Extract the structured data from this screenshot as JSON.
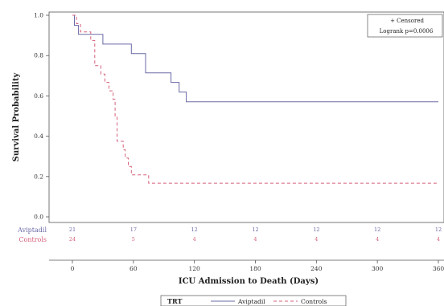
{
  "chart_data": {
    "type": "line",
    "subtype": "kaplan-meier step",
    "title": "",
    "xlabel": "ICU Admission to Death (Days)",
    "ylabel": "Survival Probability",
    "xlim": [
      0,
      360
    ],
    "ylim": [
      0,
      1.0
    ],
    "xticks": [
      0,
      60,
      120,
      180,
      240,
      300,
      360
    ],
    "yticks": [
      0.0,
      0.2,
      0.4,
      0.6,
      0.8,
      1.0
    ],
    "grid": false,
    "series": [
      {
        "name": "Aviptadil",
        "color": "#6a6aa6",
        "dash": "solid",
        "points": [
          [
            0,
            1.0
          ],
          [
            2,
            1.0
          ],
          [
            2,
            0.95
          ],
          [
            6,
            0.95
          ],
          [
            6,
            0.905
          ],
          [
            30,
            0.905
          ],
          [
            30,
            0.857
          ],
          [
            58,
            0.857
          ],
          [
            58,
            0.81
          ],
          [
            72,
            0.81
          ],
          [
            72,
            0.714
          ],
          [
            97,
            0.714
          ],
          [
            97,
            0.667
          ],
          [
            105,
            0.667
          ],
          [
            105,
            0.619
          ],
          [
            112,
            0.619
          ],
          [
            112,
            0.571
          ],
          [
            360,
            0.571
          ]
        ]
      },
      {
        "name": "Controls",
        "color": "#d4607a",
        "dash": "dashed",
        "points": [
          [
            0,
            1.0
          ],
          [
            4,
            1.0
          ],
          [
            4,
            0.958
          ],
          [
            8,
            0.958
          ],
          [
            8,
            0.917
          ],
          [
            18,
            0.917
          ],
          [
            18,
            0.875
          ],
          [
            22,
            0.875
          ],
          [
            22,
            0.75
          ],
          [
            28,
            0.75
          ],
          [
            28,
            0.708
          ],
          [
            32,
            0.708
          ],
          [
            32,
            0.667
          ],
          [
            36,
            0.667
          ],
          [
            36,
            0.625
          ],
          [
            40,
            0.625
          ],
          [
            40,
            0.583
          ],
          [
            42,
            0.583
          ],
          [
            42,
            0.5
          ],
          [
            44,
            0.5
          ],
          [
            44,
            0.375
          ],
          [
            50,
            0.375
          ],
          [
            50,
            0.333
          ],
          [
            52,
            0.333
          ],
          [
            52,
            0.292
          ],
          [
            55,
            0.292
          ],
          [
            55,
            0.25
          ],
          [
            58,
            0.25
          ],
          [
            58,
            0.208
          ],
          [
            75,
            0.208
          ],
          [
            75,
            0.167
          ],
          [
            360,
            0.167
          ]
        ]
      }
    ],
    "inset": {
      "censored_label": "+ Censored",
      "logrank_label": "Logrank p=0.0006",
      "position": "top-right"
    },
    "risk_table": {
      "times": [
        0,
        60,
        120,
        180,
        240,
        300,
        360
      ],
      "rows": [
        {
          "label": "Aviptadil",
          "color": "#6a6aa6",
          "counts": [
            "21",
            "17",
            "12",
            "12",
            "12",
            "12",
            "12"
          ]
        },
        {
          "label": "Controls",
          "color": "#d4607a",
          "counts": [
            "24",
            "5",
            "4",
            "4",
            "4",
            "4",
            "4"
          ]
        }
      ]
    },
    "legend": {
      "title": "TRT",
      "position": "bottom",
      "entries": [
        {
          "label": "Aviptadil",
          "color": "#6a6aa6",
          "dash": "solid"
        },
        {
          "label": "Controls",
          "color": "#d4607a",
          "dash": "dashed"
        }
      ]
    }
  }
}
